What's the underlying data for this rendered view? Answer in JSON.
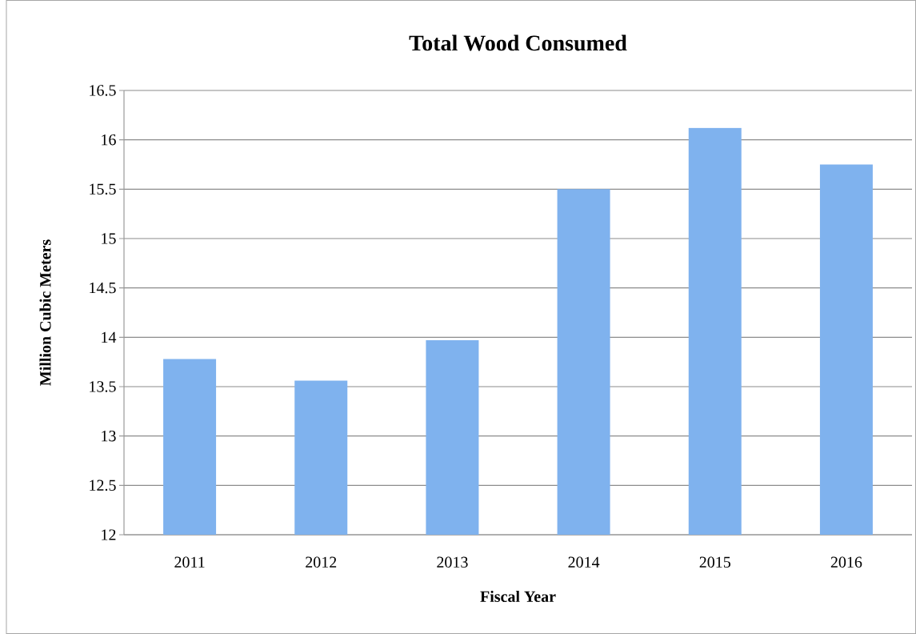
{
  "chart_data": {
    "type": "bar",
    "title": "Total Wood Consumed",
    "xlabel": "Fiscal Year",
    "ylabel": "Million Cubic Meters",
    "categories": [
      "2011",
      "2012",
      "2013",
      "2014",
      "2015",
      "2016"
    ],
    "values": [
      13.78,
      13.56,
      13.97,
      15.5,
      16.12,
      15.75
    ],
    "color": "#7fb2ee",
    "ylim": [
      12,
      16.5
    ],
    "yticks": [
      12,
      12.5,
      13,
      13.5,
      14,
      14.5,
      15,
      15.5,
      16,
      16.5
    ],
    "grid": "y"
  }
}
